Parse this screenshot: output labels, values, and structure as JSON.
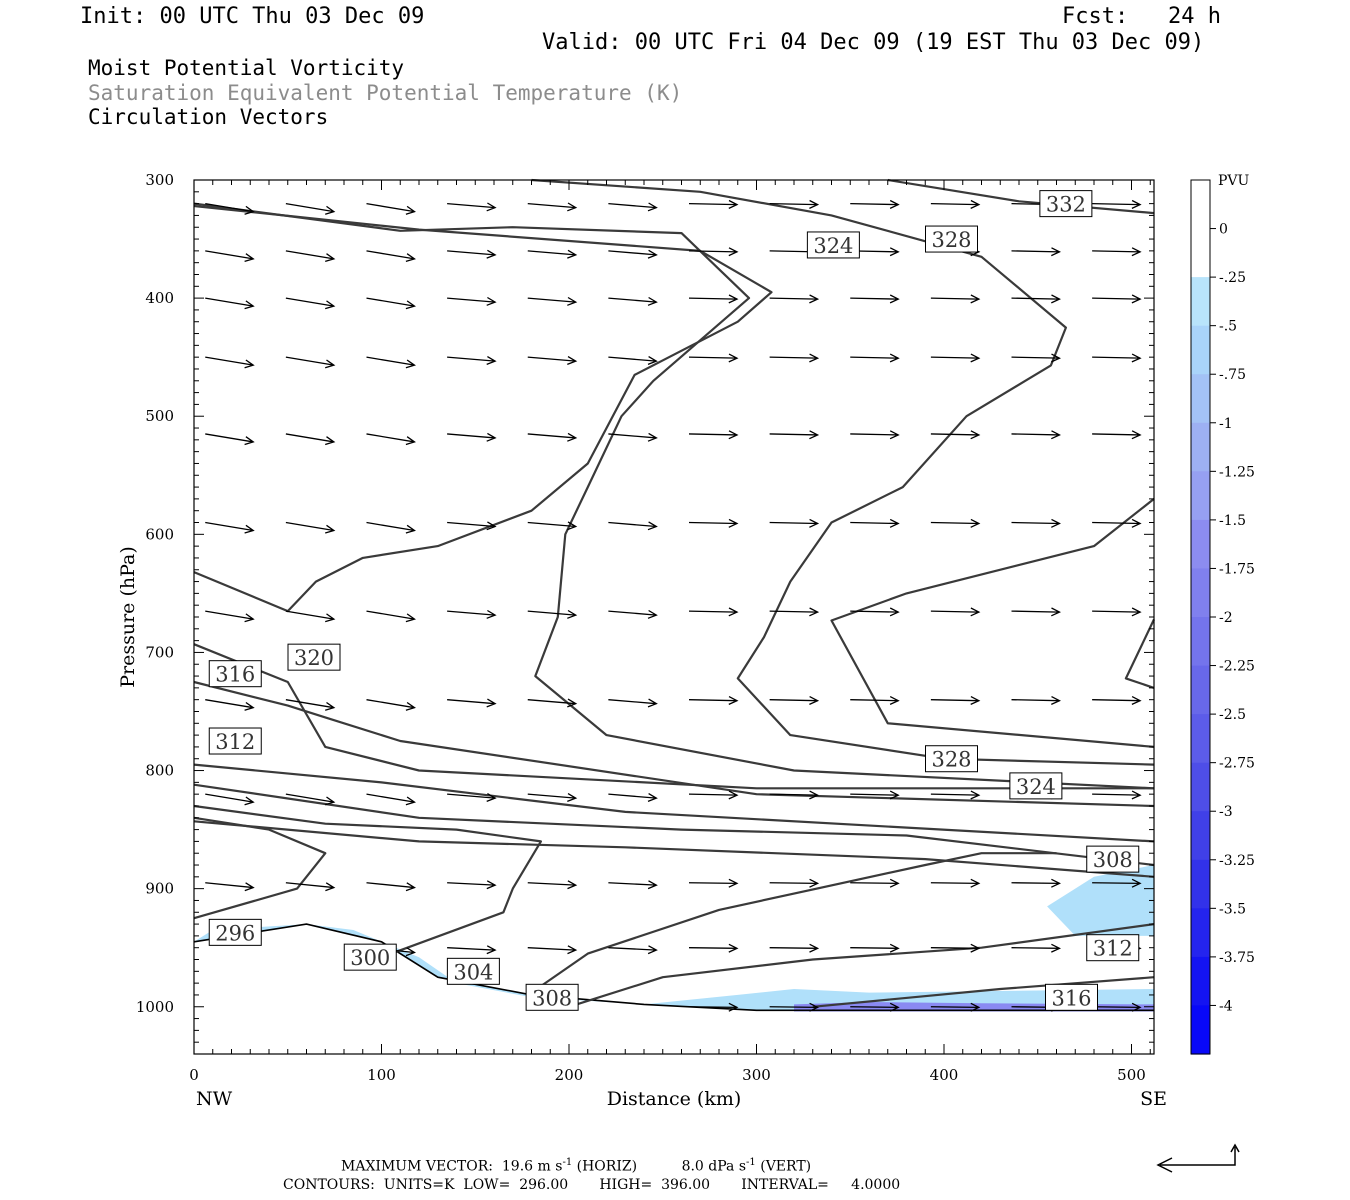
{
  "header": {
    "init": "Init: 00 UTC Thu 03 Dec 09",
    "fcst": "Fcst:   24 h",
    "valid": "Valid: 00 UTC Fri 04 Dec 09 (19 EST Thu 03 Dec 09)"
  },
  "legend_lines": {
    "line1": "Moist Potential Vorticity",
    "line2": "Saturation Equivalent Potential Temperature (K)",
    "line3": "Circulation Vectors"
  },
  "colors": {
    "contour": "#3a3a3a",
    "shade_light": "#b0e0fa",
    "shade_dark": "#1414ff",
    "colorbar_ramp": [
      "#ffffff",
      "#ffffff",
      "#b8e4fb",
      "#a9d4fa",
      "#a3c2f6",
      "#9db0f3",
      "#96a0f2",
      "#8c8cf0",
      "#8080ee",
      "#7474ec",
      "#6868ea",
      "#5c5ce9",
      "#4e4ee8",
      "#4040e8",
      "#3232ea",
      "#2424ee",
      "#1414f2",
      "#0808f8"
    ]
  },
  "chart_data": {
    "type": "contour",
    "xlabel": "Distance (km)",
    "ylabel": "Pressure (hPa)",
    "xlim": [
      0,
      512
    ],
    "ylim": [
      1040,
      300
    ],
    "x_ticks": [
      0,
      100,
      200,
      300,
      400,
      500
    ],
    "y_ticks": [
      300,
      400,
      500,
      600,
      700,
      800,
      900,
      1000
    ],
    "x_end_labels": {
      "left": "NW",
      "right": "SE"
    },
    "colorbar": {
      "unit": "PVU",
      "tick_labels": [
        "0",
        "-.25",
        "-.5",
        "-.75",
        "-1",
        "-1.25",
        "-1.5",
        "-1.75",
        "-2",
        "-2.25",
        "-2.5",
        "-2.75",
        "-3",
        "-3.25",
        "-3.5",
        "-3.75",
        "-4"
      ]
    },
    "contour_labels": [
      {
        "text": "332",
        "x": 465,
        "p": 320
      },
      {
        "text": "328",
        "x": 404,
        "p": 350
      },
      {
        "text": "324",
        "x": 341,
        "p": 355
      },
      {
        "text": "320",
        "x": 64,
        "p": 704
      },
      {
        "text": "316",
        "x": 22,
        "p": 718
      },
      {
        "text": "312",
        "x": 22,
        "p": 775
      },
      {
        "text": "328",
        "x": 404,
        "p": 790
      },
      {
        "text": "324",
        "x": 449,
        "p": 813
      },
      {
        "text": "308",
        "x": 490,
        "p": 875
      },
      {
        "text": "296",
        "x": 22,
        "p": 937
      },
      {
        "text": "300",
        "x": 94,
        "p": 958
      },
      {
        "text": "304",
        "x": 149,
        "p": 970
      },
      {
        "text": "312",
        "x": 490,
        "p": 950
      },
      {
        "text": "308",
        "x": 191,
        "p": 992
      },
      {
        "text": "316",
        "x": 468,
        "p": 992
      }
    ],
    "theta_e_contours": [
      {
        "level": 332,
        "points": [
          [
            370,
            300
          ],
          [
            440,
            318
          ],
          [
            512,
            328
          ]
        ]
      },
      {
        "level": 328,
        "points": [
          [
            180,
            300
          ],
          [
            270,
            310
          ],
          [
            340,
            330
          ],
          [
            420,
            365
          ],
          [
            465,
            425
          ],
          [
            457,
            457
          ],
          [
            412,
            500
          ],
          [
            378,
            560
          ],
          [
            340,
            590
          ],
          [
            318,
            640
          ],
          [
            304,
            687
          ],
          [
            290,
            722
          ],
          [
            318,
            770
          ],
          [
            400,
            790
          ],
          [
            512,
            795
          ]
        ]
      },
      {
        "level": 328,
        "points": [
          [
            512,
            672
          ],
          [
            497,
            722
          ],
          [
            512,
            730
          ]
        ]
      },
      {
        "level": 324,
        "points": [
          [
            0,
            320
          ],
          [
            110,
            343
          ],
          [
            170,
            340
          ],
          [
            260,
            345
          ],
          [
            296,
            400
          ],
          [
            245,
            470
          ],
          [
            228,
            500
          ],
          [
            210,
            560
          ],
          [
            198,
            600
          ],
          [
            194,
            670
          ],
          [
            182,
            720
          ],
          [
            220,
            770
          ],
          [
            320,
            800
          ],
          [
            512,
            815
          ]
        ]
      },
      {
        "level": 320,
        "points": [
          [
            0,
            632
          ],
          [
            50,
            665
          ],
          [
            65,
            640
          ],
          [
            90,
            620
          ],
          [
            130,
            610
          ],
          [
            180,
            580
          ],
          [
            210,
            540
          ],
          [
            235,
            465
          ],
          [
            290,
            420
          ],
          [
            308,
            395
          ],
          [
            270,
            360
          ],
          [
            120,
            342
          ],
          [
            0,
            322
          ]
        ]
      },
      {
        "level": 320,
        "points": [
          [
            512,
            570
          ],
          [
            480,
            610
          ],
          [
            380,
            650
          ],
          [
            340,
            673
          ],
          [
            370,
            760
          ],
          [
            512,
            780
          ]
        ]
      },
      {
        "level": 316,
        "points": [
          [
            0,
            693
          ],
          [
            50,
            725
          ],
          [
            70,
            780
          ],
          [
            120,
            800
          ],
          [
            300,
            815
          ],
          [
            512,
            815
          ]
        ]
      },
      {
        "level": 312,
        "points": [
          [
            0,
            725
          ],
          [
            50,
            745
          ],
          [
            70,
            755
          ],
          [
            110,
            775
          ],
          [
            300,
            820
          ],
          [
            512,
            830
          ]
        ]
      },
      {
        "level": 308,
        "points": [
          [
            0,
            795
          ],
          [
            100,
            810
          ],
          [
            230,
            835
          ],
          [
            512,
            860
          ]
        ]
      },
      {
        "level": 304,
        "points": [
          [
            0,
            812
          ],
          [
            120,
            840
          ],
          [
            260,
            850
          ],
          [
            380,
            855
          ],
          [
            512,
            880
          ]
        ]
      },
      {
        "level": 300,
        "points": [
          [
            0,
            843
          ],
          [
            120,
            860
          ],
          [
            230,
            865
          ],
          [
            390,
            875
          ],
          [
            512,
            890
          ]
        ]
      },
      {
        "level": 296,
        "points": [
          [
            0,
            925
          ],
          [
            55,
            900
          ],
          [
            70,
            870
          ],
          [
            40,
            850
          ],
          [
            0,
            840
          ]
        ]
      },
      {
        "level": 300,
        "points": [
          [
            100,
            958
          ],
          [
            165,
            920
          ],
          [
            170,
            900
          ],
          [
            185,
            860
          ],
          [
            140,
            850
          ],
          [
            70,
            845
          ],
          [
            0,
            830
          ]
        ]
      },
      {
        "level": 304,
        "points": [
          [
            180,
            988
          ],
          [
            210,
            955
          ],
          [
            280,
            918
          ],
          [
            390,
            880
          ],
          [
            420,
            870
          ],
          [
            460,
            870
          ]
        ]
      },
      {
        "level": 308,
        "points": [
          [
            200,
            1000
          ],
          [
            250,
            975
          ],
          [
            330,
            960
          ],
          [
            420,
            950
          ],
          [
            512,
            930
          ]
        ]
      },
      {
        "level": 312,
        "points": [
          [
            330,
            1000
          ],
          [
            430,
            985
          ],
          [
            512,
            975
          ]
        ]
      }
    ],
    "terrain_surface": [
      [
        0,
        945
      ],
      [
        60,
        930
      ],
      [
        100,
        945
      ],
      [
        130,
        975
      ],
      [
        180,
        990
      ],
      [
        240,
        998
      ],
      [
        300,
        1003
      ],
      [
        512,
        1003
      ]
    ],
    "mpv_shading_regions": [
      {
        "level_pvu": -0.5,
        "points": [
          [
            10,
            935
          ],
          [
            60,
            930
          ],
          [
            85,
            935
          ],
          [
            120,
            958
          ],
          [
            140,
            980
          ],
          [
            180,
            992
          ],
          [
            240,
            998
          ],
          [
            290,
            990
          ],
          [
            320,
            985
          ],
          [
            360,
            988
          ],
          [
            512,
            985
          ],
          [
            512,
            1003
          ],
          [
            300,
            1003
          ],
          [
            240,
            998
          ],
          [
            180,
            990
          ],
          [
            130,
            975
          ],
          [
            100,
            945
          ],
          [
            60,
            930
          ],
          [
            0,
            945
          ]
        ]
      },
      {
        "level_pvu": -0.5,
        "points": [
          [
            455,
            915
          ],
          [
            480,
            890
          ],
          [
            512,
            880
          ],
          [
            512,
            940
          ],
          [
            470,
            940
          ]
        ]
      },
      {
        "level_pvu": -2.5,
        "points": [
          [
            320,
            998
          ],
          [
            360,
            996
          ],
          [
            420,
            997
          ],
          [
            512,
            998
          ],
          [
            512,
            1004
          ],
          [
            320,
            1004
          ]
        ]
      }
    ],
    "vectors": {
      "rows_hpa": [
        320,
        360,
        400,
        450,
        515,
        590,
        665,
        740,
        820,
        895,
        950,
        1000
      ],
      "cols_km": [
        0,
        43,
        86,
        129,
        172,
        215,
        258,
        301,
        344,
        387,
        430,
        473
      ]
    },
    "footer": {
      "max_vector_label": "MAXIMUM VECTOR:",
      "max_vector_horiz": "19.6 m s",
      "max_vector_horiz_exp": "-1",
      "max_vector_horiz_tag": "(HORIZ)",
      "max_vector_vert": "8.0 dPa s",
      "max_vector_vert_exp": "-1",
      "max_vector_vert_tag": "(VERT)",
      "contours_line": "CONTOURS:  UNITS=K  LOW=  296.00       HIGH=  396.00       INTERVAL=     4.0000"
    }
  }
}
